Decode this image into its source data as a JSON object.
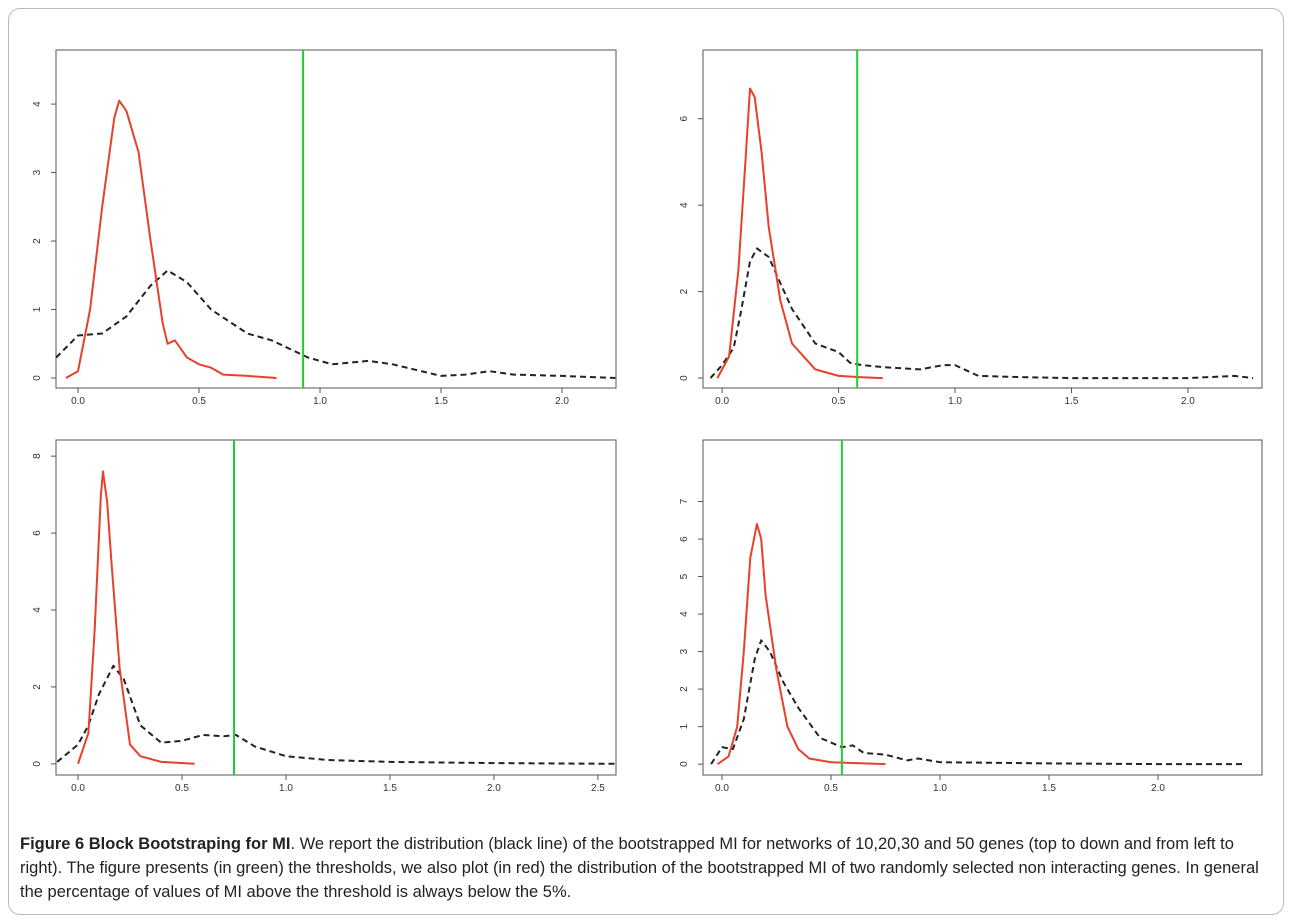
{
  "chart_data": [
    {
      "type": "line",
      "xlim": [
        -0.091,
        2.223
      ],
      "ylim": [
        -0.146,
        4.79
      ],
      "xticks": [
        {
          "value": 0,
          "label": "0.0"
        },
        {
          "value": 0.5,
          "label": "0.5"
        },
        {
          "value": 1,
          "label": "1.0"
        },
        {
          "value": 1.5,
          "label": "1.5"
        },
        {
          "value": 2,
          "label": "2.0"
        }
      ],
      "yticks": [
        0,
        1,
        2,
        3,
        4
      ],
      "vline": {
        "value": 0.93,
        "color": "#22cc33"
      },
      "series": [
        {
          "color": "#222222",
          "dash": true,
          "x": [
            -0.09,
            0,
            0.1,
            0.2,
            0.3,
            0.37,
            0.45,
            0.55,
            0.7,
            0.8,
            0.95,
            1.05,
            1.2,
            1.3,
            1.5,
            1.6,
            1.7,
            1.8,
            2.0,
            2.22
          ],
          "values": [
            0.3,
            0.62,
            0.65,
            0.9,
            1.35,
            1.57,
            1.4,
            1.0,
            0.65,
            0.55,
            0.3,
            0.2,
            0.25,
            0.2,
            0.03,
            0.05,
            0.1,
            0.05,
            0.03,
            0
          ]
        },
        {
          "color": "#e8402a",
          "dash": false,
          "x": [
            -0.05,
            0,
            0.05,
            0.1,
            0.15,
            0.17,
            0.2,
            0.25,
            0.3,
            0.35,
            0.37,
            0.4,
            0.42,
            0.45,
            0.5,
            0.55,
            0.6,
            0.7,
            0.82
          ],
          "values": [
            0,
            0.1,
            1.0,
            2.5,
            3.8,
            4.05,
            3.9,
            3.3,
            2.0,
            0.8,
            0.5,
            0.55,
            0.45,
            0.3,
            0.2,
            0.15,
            0.05,
            0.03,
            0
          ]
        }
      ]
    },
    {
      "type": "line",
      "xlim": [
        -0.082,
        2.318
      ],
      "ylim": [
        -0.23,
        7.59
      ],
      "xticks": [
        {
          "value": 0,
          "label": "0.0"
        },
        {
          "value": 0.5,
          "label": "0.5"
        },
        {
          "value": 1,
          "label": "1.0"
        },
        {
          "value": 1.5,
          "label": "1.5"
        },
        {
          "value": 2,
          "label": "2.0"
        }
      ],
      "yticks": [
        0,
        2,
        4,
        6
      ],
      "vline": {
        "value": 0.58,
        "color": "#22cc33"
      },
      "series": [
        {
          "color": "#222222",
          "dash": true,
          "x": [
            -0.05,
            0,
            0.05,
            0.08,
            0.12,
            0.15,
            0.2,
            0.25,
            0.3,
            0.35,
            0.4,
            0.5,
            0.55,
            0.6,
            0.7,
            0.85,
            0.95,
            1.0,
            1.1,
            1.3,
            1.5,
            2.0,
            2.2,
            2.28
          ],
          "values": [
            0,
            0.3,
            0.7,
            1.5,
            2.7,
            3.0,
            2.8,
            2.2,
            1.6,
            1.2,
            0.8,
            0.6,
            0.35,
            0.3,
            0.25,
            0.2,
            0.3,
            0.3,
            0.05,
            0.02,
            0,
            0,
            0.05,
            0
          ]
        },
        {
          "color": "#e8402a",
          "dash": false,
          "x": [
            -0.02,
            0.03,
            0.07,
            0.1,
            0.12,
            0.14,
            0.17,
            0.2,
            0.25,
            0.3,
            0.35,
            0.4,
            0.5,
            0.6,
            0.69
          ],
          "values": [
            0,
            0.5,
            2.5,
            5.0,
            6.7,
            6.5,
            5.2,
            3.5,
            1.8,
            0.8,
            0.5,
            0.2,
            0.05,
            0.02,
            0
          ]
        }
      ]
    },
    {
      "type": "line",
      "xlim": [
        -0.106,
        2.587
      ],
      "ylim": [
        -0.29,
        8.42
      ],
      "xticks": [
        {
          "value": 0,
          "label": "0.0"
        },
        {
          "value": 0.5,
          "label": "0.5"
        },
        {
          "value": 1,
          "label": "1.0"
        },
        {
          "value": 1.5,
          "label": "1.5"
        },
        {
          "value": 2,
          "label": "2.0"
        },
        {
          "value": 2.5,
          "label": "2.5"
        }
      ],
      "yticks": [
        0,
        2,
        4,
        6,
        8
      ],
      "vline": {
        "value": 0.75,
        "color": "#22cc33"
      },
      "series": [
        {
          "color": "#222222",
          "dash": true,
          "x": [
            -0.1,
            0,
            0.05,
            0.1,
            0.17,
            0.22,
            0.3,
            0.4,
            0.5,
            0.6,
            0.7,
            0.76,
            0.85,
            1.0,
            1.2,
            1.5,
            2.0,
            2.58
          ],
          "values": [
            0.05,
            0.5,
            1.0,
            1.8,
            2.55,
            2.2,
            1.0,
            0.55,
            0.6,
            0.75,
            0.72,
            0.75,
            0.45,
            0.2,
            0.1,
            0.05,
            0.02,
            0
          ]
        },
        {
          "color": "#e8402a",
          "dash": false,
          "x": [
            0,
            0.05,
            0.08,
            0.11,
            0.12,
            0.14,
            0.16,
            0.2,
            0.25,
            0.3,
            0.4,
            0.56
          ],
          "values": [
            0,
            0.8,
            3.5,
            7.0,
            7.6,
            6.8,
            5.3,
            2.5,
            0.5,
            0.2,
            0.05,
            0
          ]
        }
      ]
    },
    {
      "type": "line",
      "xlim": [
        -0.087,
        2.477
      ],
      "ylim": [
        -0.29,
        8.64
      ],
      "xticks": [
        {
          "value": 0,
          "label": "0.0"
        },
        {
          "value": 0.5,
          "label": "0.5"
        },
        {
          "value": 1,
          "label": "1.0"
        },
        {
          "value": 1.5,
          "label": "1.5"
        },
        {
          "value": 2,
          "label": "2.0"
        }
      ],
      "yticks": [
        0,
        1,
        2,
        3,
        4,
        5,
        6,
        7
      ],
      "vline": {
        "value": 0.55,
        "color": "#22cc33"
      },
      "series": [
        {
          "color": "#222222",
          "dash": true,
          "x": [
            -0.05,
            0,
            0.05,
            0.1,
            0.15,
            0.18,
            0.22,
            0.28,
            0.35,
            0.45,
            0.55,
            0.6,
            0.65,
            0.75,
            0.85,
            0.9,
            1.0,
            1.5,
            2.0,
            2.4
          ],
          "values": [
            0,
            0.45,
            0.4,
            1.2,
            2.8,
            3.3,
            3.0,
            2.2,
            1.5,
            0.7,
            0.45,
            0.5,
            0.3,
            0.25,
            0.1,
            0.15,
            0.05,
            0.02,
            0,
            0
          ]
        },
        {
          "color": "#e8402a",
          "dash": false,
          "x": [
            -0.02,
            0.03,
            0.07,
            0.1,
            0.13,
            0.16,
            0.18,
            0.2,
            0.25,
            0.3,
            0.35,
            0.4,
            0.5,
            0.75
          ],
          "values": [
            0,
            0.2,
            1.0,
            3.0,
            5.5,
            6.4,
            6.0,
            4.5,
            2.5,
            1.0,
            0.4,
            0.15,
            0.05,
            0
          ]
        }
      ]
    }
  ],
  "caption": {
    "label": "Figure 6 Block Bootstraping for MI",
    "text": ". We report the distribution (black line) of the bootstrapped MI for networks of 10,20,30 and 50 genes (top to down and from left to right). The figure presents (in green) the thresholds, we also plot (in red) the distribution of the bootstrapped MI of two randomly selected non interacting genes. In general the percentage of values of MI above the threshold is always below the 5%."
  }
}
